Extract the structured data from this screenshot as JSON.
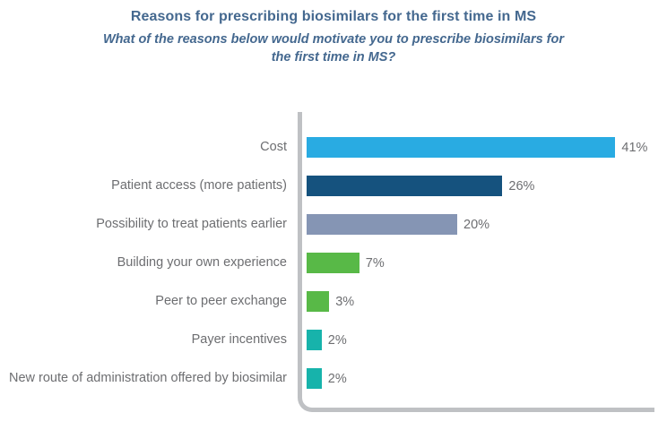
{
  "header": {
    "title": "Reasons for prescribing biosimilars for the first time in MS",
    "subtitle": "What of the reasons below would motivate you to prescribe biosimilars for the first time in MS?"
  },
  "chart_data": {
    "type": "bar",
    "orientation": "horizontal",
    "title": "Reasons for prescribing biosimilars for the first time in MS",
    "subtitle": "What of the reasons below would motivate you to prescribe biosimilars for the first time in MS?",
    "xlabel": "",
    "ylabel": "",
    "xlim": [
      0,
      45
    ],
    "grid": false,
    "legend": false,
    "categories": [
      "Cost",
      "Patient access (more patients)",
      "Possibility to treat patients earlier",
      "Building your own experience",
      "Peer to peer exchange",
      "Payer incentives",
      "New route of administration offered by biosimilar"
    ],
    "values": [
      41,
      26,
      20,
      7,
      3,
      2,
      2
    ],
    "value_labels": [
      "41%",
      "26%",
      "20%",
      "7%",
      "3%",
      "2%",
      "2%"
    ],
    "bar_colors": [
      "#29ABE2",
      "#15527E",
      "#8595B4",
      "#58B947",
      "#58B947",
      "#17B3AB",
      "#17B3AB"
    ]
  },
  "colors": {
    "title_text": "#44688F",
    "label_text": "#6D6E71",
    "axis_line": "#BFC1C4",
    "background": "#FFFFFF"
  }
}
